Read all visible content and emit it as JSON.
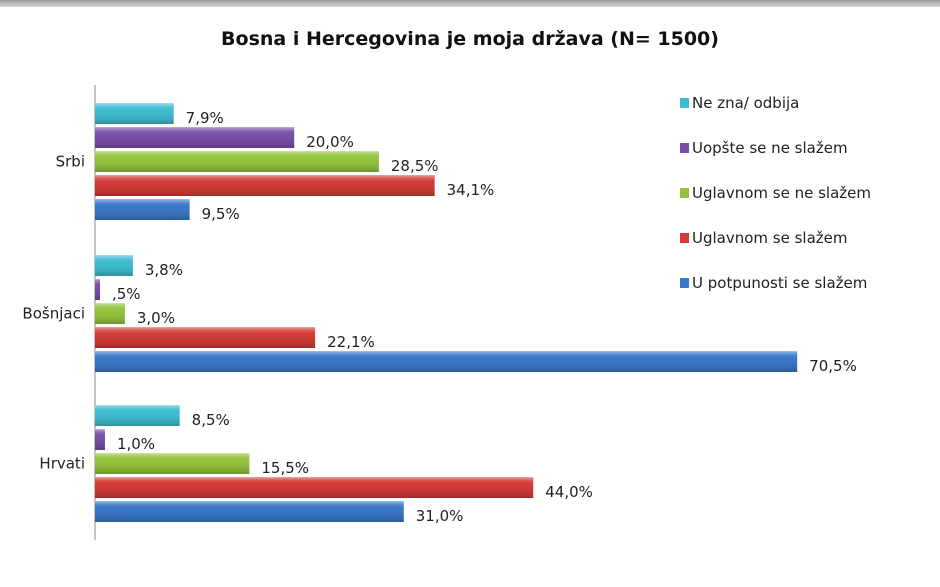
{
  "chart_data": {
    "type": "bar",
    "orientation": "horizontal",
    "title": "Bosna i Hercegovina je moja država (N= 1500)",
    "categories": [
      "Srbi",
      "Bošnjaci",
      "Hrvati"
    ],
    "series": [
      {
        "name": "Ne zna/ odbija",
        "color": "#3fbcd0",
        "values": [
          7.9,
          3.8,
          8.5
        ],
        "labels": [
          "7,9%",
          "3,8%",
          "8,5%"
        ]
      },
      {
        "name": "Uopšte se ne slažem",
        "color": "#7a4fa8",
        "values": [
          20.0,
          0.5,
          1.0
        ],
        "labels": [
          "20,0%",
          ",5%",
          "1,0%"
        ]
      },
      {
        "name": "Uglavnom se ne slažem",
        "color": "#94c23c",
        "values": [
          28.5,
          3.0,
          15.5
        ],
        "labels": [
          "28,5%",
          "3,0%",
          "15,5%"
        ]
      },
      {
        "name": "Uglavnom se slažem",
        "color": "#d23b38",
        "values": [
          34.1,
          22.1,
          44.0
        ],
        "labels": [
          "34,1%",
          "22,1%",
          "44,0%"
        ]
      },
      {
        "name": "U potpunosti se slažem",
        "color": "#3a78c8",
        "values": [
          9.5,
          70.5,
          31.0
        ],
        "labels": [
          "9,5%",
          "70,5%",
          "31,0%"
        ]
      }
    ],
    "xlim": [
      0,
      85
    ],
    "grid": false,
    "legend": "right"
  }
}
